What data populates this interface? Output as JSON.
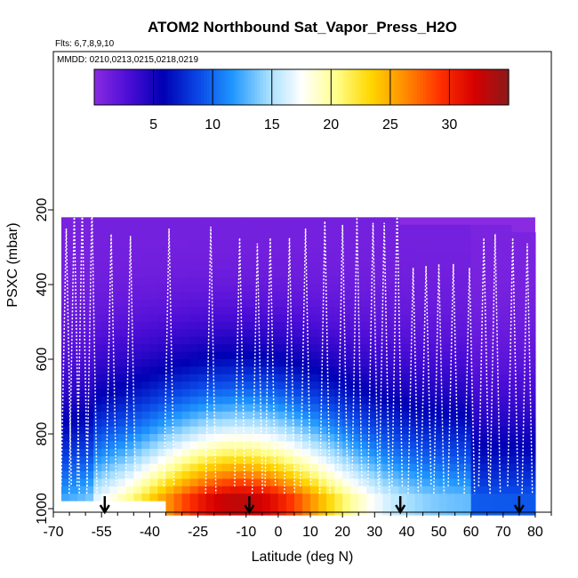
{
  "chart_data": {
    "type": "heatmap",
    "title": "ATOM2 Northbound Sat_Vapor_Press_H2O",
    "flights_label": "Flts: 6,7,8,9,10",
    "dates_label": "MMDD: 0210,0213,0215,0218,0219",
    "xlabel": "Latitude (deg N)",
    "ylabel": "PSXC (mbar)",
    "xlim": [
      -70,
      85
    ],
    "ylim": [
      1020,
      0
    ],
    "x_ticks": [
      -70,
      -55,
      -40,
      -25,
      -10,
      0,
      10,
      20,
      30,
      40,
      50,
      60,
      70,
      80
    ],
    "x_tick_labels": [
      "-70",
      "-55",
      "-40",
      "-25",
      "-10",
      "0",
      "10",
      "20",
      "30",
      "40",
      "50",
      "60",
      "70",
      "80"
    ],
    "x_minor_ticks": [
      -65,
      -60,
      -50,
      -45,
      -35,
      -30,
      -20,
      -15,
      -5,
      5,
      15,
      25,
      35,
      45,
      55,
      65,
      75,
      85
    ],
    "y_ticks": [
      200,
      400,
      600,
      800,
      1000
    ],
    "y_tick_labels": [
      "200",
      "400",
      "600",
      "800",
      "1000"
    ],
    "colorbar": {
      "min": 0,
      "max": 35,
      "ticks": [
        5,
        10,
        15,
        20,
        25,
        30
      ],
      "tick_labels": [
        "5",
        "10",
        "15",
        "20",
        "25",
        "30"
      ],
      "colors": [
        "#8a2be2",
        "#4b0dd6",
        "#0000b4",
        "#0a46e6",
        "#1e96ff",
        "#a0dcff",
        "#ffffff",
        "#ffff8c",
        "#ffd700",
        "#ff8c00",
        "#ff3200",
        "#d70000",
        "#8b1a1a"
      ]
    },
    "profile_markers_lat": [
      -54,
      -9,
      38,
      75
    ],
    "colors": {
      "top_fill": "#8a2be2",
      "missing": "#ffffff",
      "trace": "#ffffff",
      "axis": "#000000"
    }
  }
}
